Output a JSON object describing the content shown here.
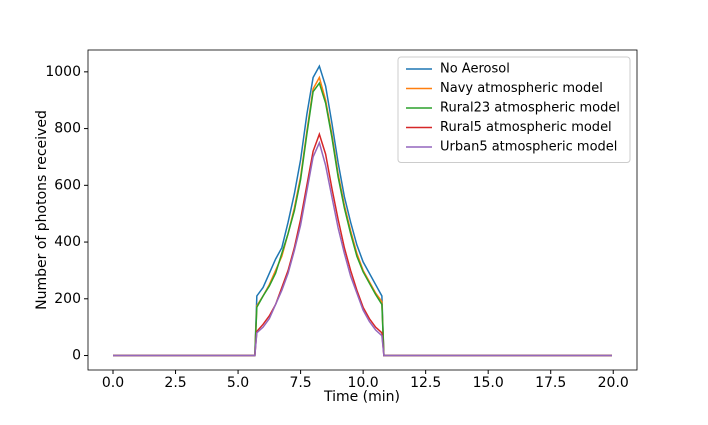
{
  "chart_data": {
    "type": "line",
    "xlabel": "Time (min)",
    "ylabel": "Number of photons received",
    "x": [
      0,
      5.67,
      5.75,
      6.0,
      6.25,
      6.5,
      6.75,
      7.0,
      7.25,
      7.5,
      7.75,
      8.0,
      8.25,
      8.5,
      8.75,
      9.0,
      9.25,
      9.5,
      9.75,
      10.0,
      10.25,
      10.5,
      10.75,
      10.83,
      19.95
    ],
    "series": [
      {
        "name": "No Aerosol",
        "color": "#1f77b4",
        "values": [
          0,
          0,
          210,
          240,
          290,
          340,
          380,
          470,
          570,
          690,
          850,
          980,
          1020,
          950,
          820,
          680,
          560,
          470,
          390,
          330,
          290,
          250,
          210,
          0,
          0
        ]
      },
      {
        "name": "Navy atmospheric model",
        "color": "#ff7f0e",
        "values": [
          0,
          0,
          175,
          210,
          250,
          300,
          350,
          430,
          520,
          630,
          790,
          940,
          980,
          900,
          780,
          640,
          530,
          440,
          360,
          300,
          260,
          220,
          190,
          0,
          0
        ]
      },
      {
        "name": "Rural23 atmospheric model",
        "color": "#2ca02c",
        "values": [
          0,
          0,
          170,
          210,
          245,
          290,
          360,
          430,
          510,
          620,
          780,
          930,
          960,
          890,
          770,
          630,
          520,
          430,
          350,
          295,
          255,
          215,
          180,
          0,
          0
        ]
      },
      {
        "name": "Rural5 atmospheric model",
        "color": "#d62728",
        "values": [
          0,
          0,
          85,
          110,
          140,
          180,
          240,
          300,
          380,
          480,
          600,
          720,
          780,
          710,
          590,
          480,
          380,
          300,
          230,
          170,
          130,
          100,
          80,
          0,
          0
        ]
      },
      {
        "name": "Urban5 atmospheric model",
        "color": "#9467bd",
        "values": [
          0,
          0,
          80,
          100,
          130,
          180,
          230,
          290,
          370,
          460,
          580,
          700,
          750,
          670,
          560,
          450,
          360,
          280,
          220,
          160,
          120,
          90,
          70,
          0,
          0
        ]
      }
    ],
    "xlim": [
      -1,
      20.95
    ],
    "ylim": [
      -51,
      1077
    ],
    "xticks": [
      {
        "value": 0,
        "label": "0.0"
      },
      2.5,
      {
        "value": 5,
        "label": "5.0"
      },
      7.5,
      {
        "value": 10,
        "label": "10.0"
      },
      12.5,
      {
        "value": 15,
        "label": "15.0"
      },
      17.5,
      {
        "value": 20,
        "label": "20.0"
      }
    ],
    "yticks": [
      0,
      200,
      400,
      600,
      800,
      1000
    ],
    "legend": "upper right"
  }
}
